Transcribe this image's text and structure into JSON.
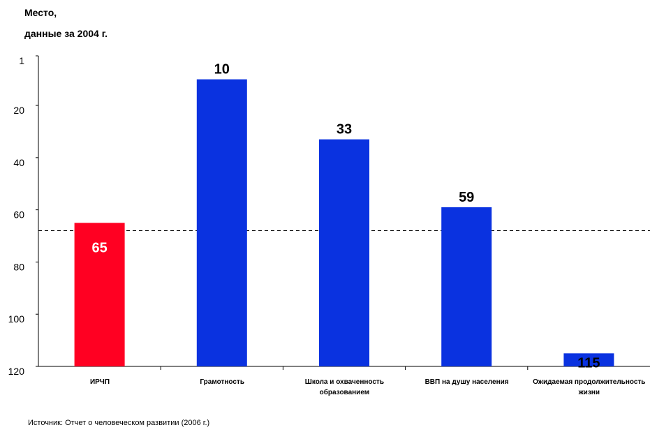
{
  "chart_data": {
    "type": "bar",
    "title_line1": "Место,",
    "title_line2": "данные за 2004 г.",
    "categories": [
      "ИРЧП",
      "Грамотность",
      "Школа и охваченность образованием",
      "ВВП на душу населения",
      "Ожидаемая продолжительность жизни"
    ],
    "values": [
      65,
      10,
      33,
      59,
      115
    ],
    "value_labels": [
      "65",
      "10",
      "33",
      "59",
      "115"
    ],
    "bar_colors": [
      "#ff0022",
      "#0a32e0",
      "#0a32e0",
      "#0a32e0",
      "#0a32e0"
    ],
    "value_label_colors": [
      "#ffffff",
      "#000000",
      "#000000",
      "#000000",
      "#000000"
    ],
    "y_axis_inverted": true,
    "ylim": [
      1,
      120
    ],
    "yticks": [
      1,
      20,
      40,
      60,
      80,
      100,
      120
    ],
    "reference_line": {
      "value": 68,
      "style": "dashed"
    },
    "grid": false
  },
  "source": "Источник: Отчет о человеческом развитии (2006 г.)"
}
